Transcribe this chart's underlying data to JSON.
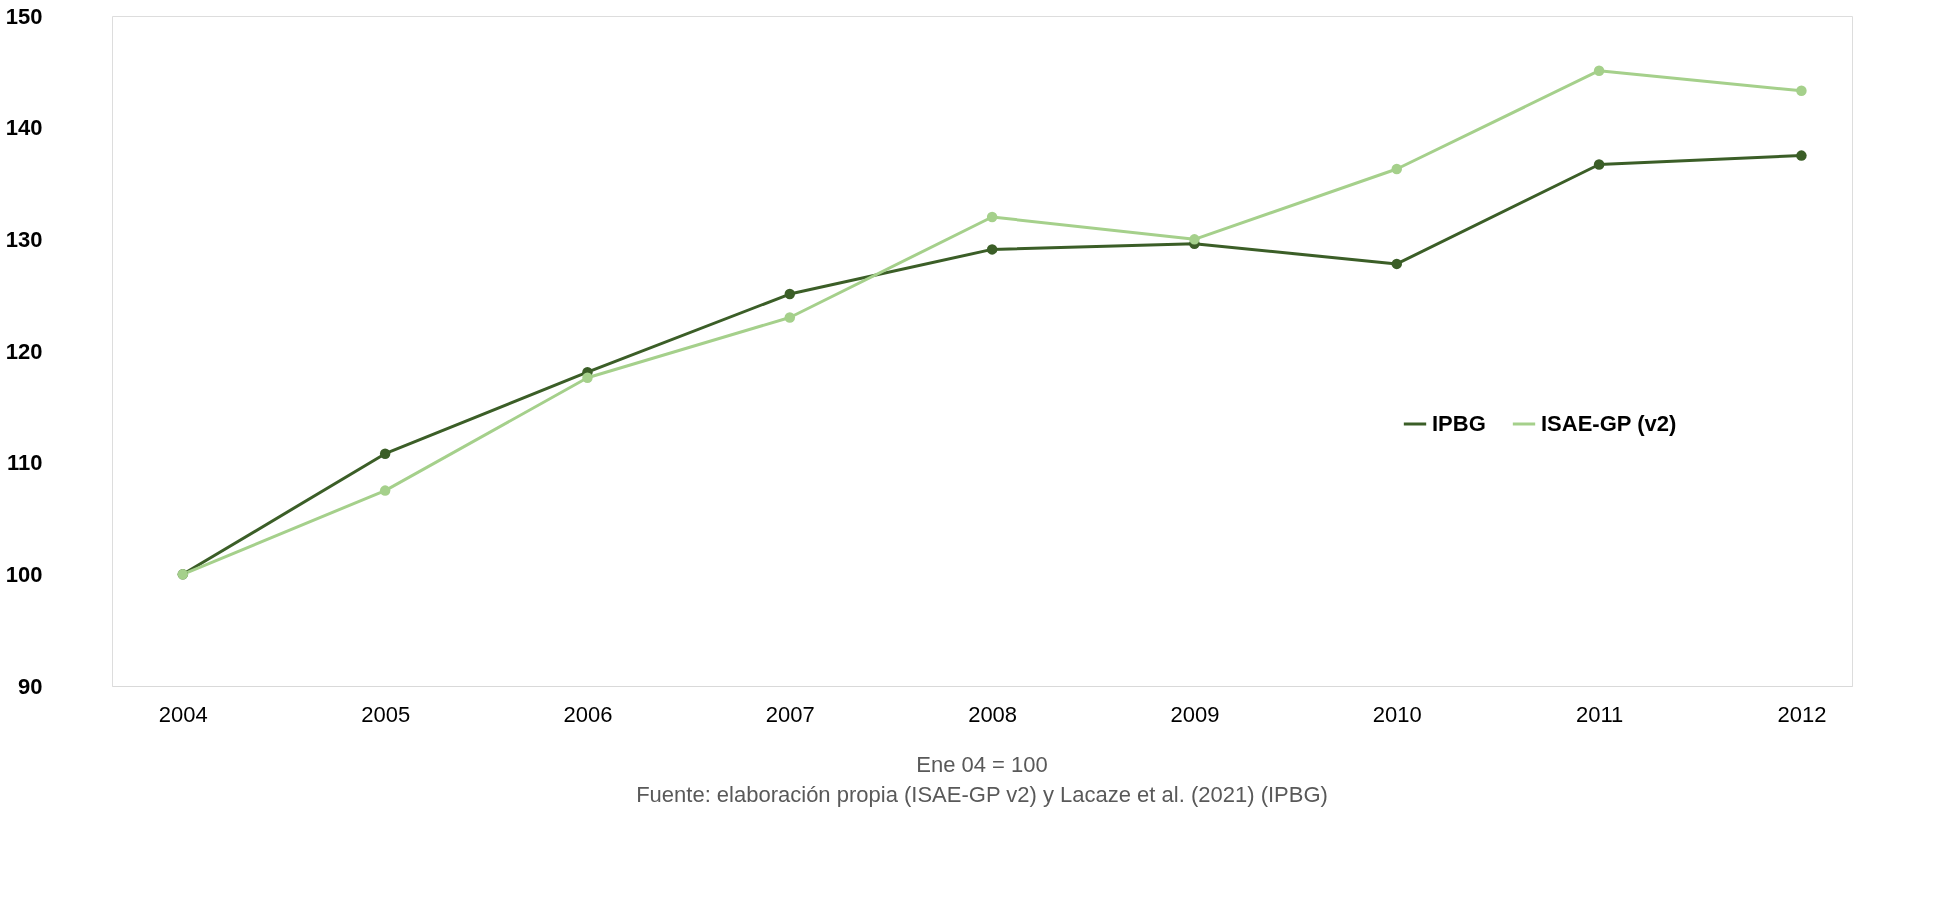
{
  "chart_data": {
    "type": "line",
    "categories": [
      "2004",
      "2005",
      "2006",
      "2007",
      "2008",
      "2009",
      "2010",
      "2011",
      "2012"
    ],
    "series": [
      {
        "name": "IPBG",
        "color": "#3b5e27",
        "values": [
          100,
          110.8,
          118.1,
          125.1,
          129.1,
          129.6,
          127.8,
          136.7,
          137.5
        ]
      },
      {
        "name": "ISAE-GP (v2)",
        "color": "#a5d08b",
        "values": [
          100,
          107.5,
          117.6,
          123.0,
          132.0,
          130.0,
          136.3,
          145.1,
          143.3
        ]
      }
    ],
    "ylim": [
      90,
      150
    ],
    "yticks": [
      90,
      100,
      110,
      120,
      130,
      140,
      150
    ],
    "grid": false,
    "legend": "right",
    "marker": "circle",
    "line_style": "solid",
    "annotations": [
      "Ene 04 = 100",
      "Fuente: elaboración propia  (ISAE-GP v2) y Lacaze et al. (2021) (IPBG)"
    ]
  }
}
